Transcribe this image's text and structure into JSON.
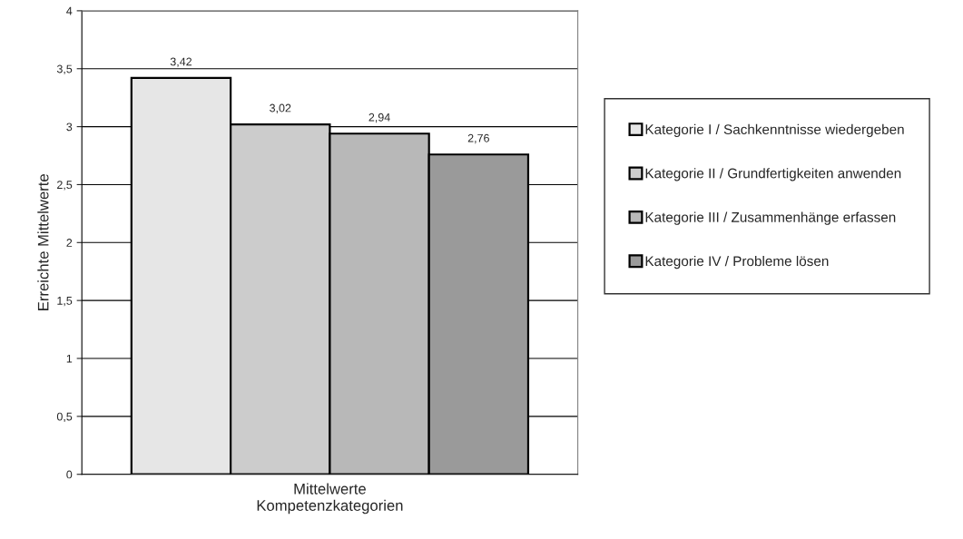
{
  "chart_data": {
    "type": "bar",
    "categories": [
      "Mittelwerte"
    ],
    "xlabel": "Kompetenzkategorien",
    "ylabel": "Erreichte Mittelwerte",
    "series": [
      {
        "name": "Kategorie I / Sachkenntnisse wiedergeben",
        "color": "#e6e6e6",
        "values": [
          3.42
        ],
        "value_labels": [
          "3,42"
        ]
      },
      {
        "name": "Kategorie II / Grundfertigkeiten anwenden",
        "color": "#cccccc",
        "values": [
          3.02
        ],
        "value_labels": [
          "3,02"
        ]
      },
      {
        "name": "Kategorie III / Zusammenhänge erfassen",
        "color": "#b8b8b8",
        "values": [
          2.94
        ],
        "value_labels": [
          "2,94"
        ]
      },
      {
        "name": "Kategorie IV / Probleme lösen",
        "color": "#9a9a9a",
        "values": [
          2.76
        ],
        "value_labels": [
          "2,76"
        ]
      }
    ],
    "ylim": [
      0,
      4
    ],
    "yticks": [
      0,
      {
        "value": 0.5,
        "label": "0,5"
      },
      1,
      {
        "value": 1.5,
        "label": "1,5"
      },
      2,
      {
        "value": 2.5,
        "label": "2,5"
      },
      3,
      {
        "value": 3.5,
        "label": "3,5"
      },
      4
    ],
    "grid": "y",
    "legend": "right"
  }
}
